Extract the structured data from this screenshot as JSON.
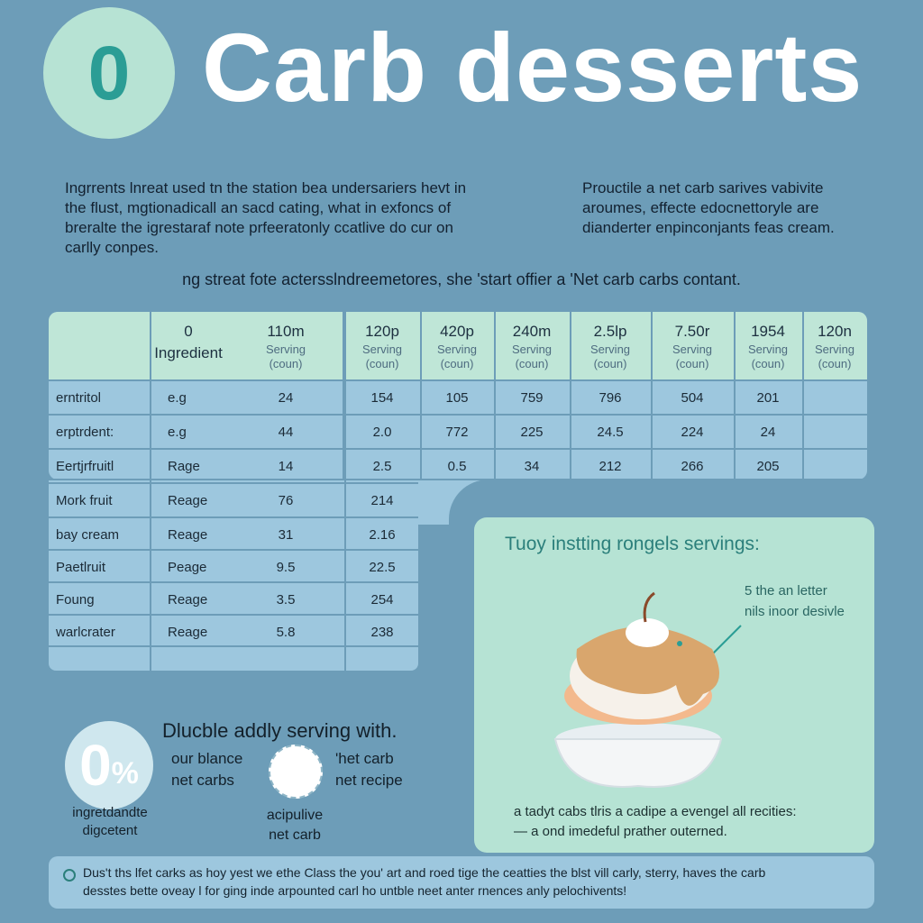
{
  "header": {
    "badge": "0",
    "title": "Carb desserts"
  },
  "intro": {
    "left": "Ingrrents lnreat used tn the station bea undersariers hevt in the flust, mgtionadicall an sacd cating, what in exfoncs of breralte the igrestaraf note prfeeratonly ccatlive do cur on carlly conpes.",
    "right": "Prouctile a net carb sarives vabivite aroumes, effecte edocnettorylе are dianderter enpinconjants feas cream."
  },
  "tagline": "ng streat fote actersslndreemetores, she 'start offier a 'Net carb carbs contant.",
  "table": {
    "ingredient_header": [
      "0",
      "Ingredient"
    ],
    "columns": [
      {
        "top": "110m",
        "sub1": "Serving",
        "sub2": "(coun)"
      },
      {
        "top": "120p",
        "sub1": "Serving",
        "sub2": "(coun)"
      },
      {
        "top": "420p",
        "sub1": "Serving",
        "sub2": "(coun)"
      },
      {
        "top": "240m",
        "sub1": "Serving",
        "sub2": "(coun)"
      },
      {
        "top": "2.5lp",
        "sub1": "Serving",
        "sub2": "(coun)"
      },
      {
        "top": "7.50r",
        "sub1": "Serving",
        "sub2": "(coun)"
      },
      {
        "top": "1954",
        "sub1": "Serving",
        "sub2": "(coun)"
      },
      {
        "top": "120n",
        "sub1": "Serving",
        "sub2": "(coun)"
      }
    ],
    "rows": [
      {
        "name": "erntritol",
        "ex": "e.g",
        "values": [
          "24",
          "154",
          "105",
          "759",
          "796",
          "504",
          "201",
          ""
        ]
      },
      {
        "name": "erptrdent:",
        "ex": "e.g",
        "values": [
          "44",
          "2.0",
          "772",
          "225",
          "24.5",
          "224",
          "24",
          ""
        ]
      },
      {
        "name": "Eertjrfruitl",
        "ex": "Rage",
        "values": [
          "14",
          "2.5",
          "0.5",
          "34",
          "212",
          "266",
          "205",
          ""
        ]
      },
      {
        "name": "Mork fruit",
        "ex": "Reage",
        "values": [
          "76",
          "214"
        ]
      },
      {
        "name": "bay cream",
        "ex": "Reage",
        "values": [
          "31",
          "2.16"
        ]
      },
      {
        "name": "Paetlruit",
        "ex": "Peage",
        "values": [
          "9.5",
          "22.5"
        ]
      },
      {
        "name": "Foung",
        "ex": "Reage",
        "values": [
          "3.5",
          "254"
        ]
      },
      {
        "name": "warlcrater",
        "ex": "Reage",
        "values": [
          "5.8",
          "238"
        ]
      }
    ]
  },
  "card": {
    "title": "Tuoy instting rongels servings:",
    "note_line1": "5 the an letter",
    "note_line2": "nils inoor desivle",
    "bottom_line1": "a tadyt cabs tlris a cadipe a evengel all recities:",
    "bottom_line2": "— a ond imedeful prather outerned."
  },
  "bottom_left": {
    "zero": "0",
    "percent": "%",
    "title": "Dlucble addly serving with.",
    "text_a1": "our blance",
    "text_a2": "net carbs",
    "text_b1": "'het carb",
    "text_b2": "net recipe",
    "caption_a1": "ingretdandte",
    "caption_a2": "digcetent",
    "caption_b1": "acipulive",
    "caption_b2": "net carb"
  },
  "footer": {
    "line1": "Dus't ths lfet carks as hoy yest we ethe Class the you' art and roed tige the ceatties the blst vill carly, sterry, haves the carb",
    "line2": "desstes bette oveay l for ging inde arpounted carl ho untble neet anter rnences anly pelochivents!"
  },
  "colors": {
    "background": "#6d9db8",
    "mint": "#b6e3d4",
    "table_body": "#9dc7de",
    "accent_teal": "#2b9d95"
  }
}
